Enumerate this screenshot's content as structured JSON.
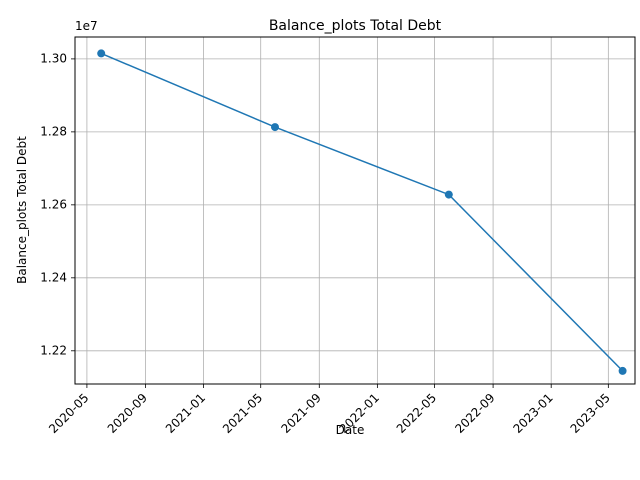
{
  "chart_data": {
    "type": "line",
    "title": "Balance_plots Total Debt",
    "xlabel": "Date",
    "ylabel": "Balance_plots Total Debt",
    "y_offset_label": "1e7",
    "x_tick_labels": [
      "2020-05",
      "2020-09",
      "2021-01",
      "2021-05",
      "2021-09",
      "2022-01",
      "2022-05",
      "2022-09",
      "2023-01",
      "2023-05"
    ],
    "x_tick_dates": [
      "2020-05-01",
      "2020-09-01",
      "2021-01-01",
      "2021-05-01",
      "2021-09-01",
      "2022-01-01",
      "2022-05-01",
      "2022-09-01",
      "2023-01-01",
      "2023-05-01"
    ],
    "y_tick_labels": [
      "1.22",
      "1.24",
      "1.26",
      "1.28",
      "1.30"
    ],
    "y_tick_values": [
      12200000,
      12400000,
      12600000,
      12800000,
      13000000
    ],
    "xlim": [
      "2020-04-06",
      "2023-06-26"
    ],
    "ylim": [
      12109000,
      13060000
    ],
    "grid": true,
    "series": [
      {
        "color": "#1f77b4",
        "marker": "circle",
        "x": [
          "2020-05-31",
          "2021-05-31",
          "2022-05-31",
          "2023-05-31"
        ],
        "values": [
          13015000,
          12813000,
          12628000,
          12145000
        ]
      }
    ]
  }
}
